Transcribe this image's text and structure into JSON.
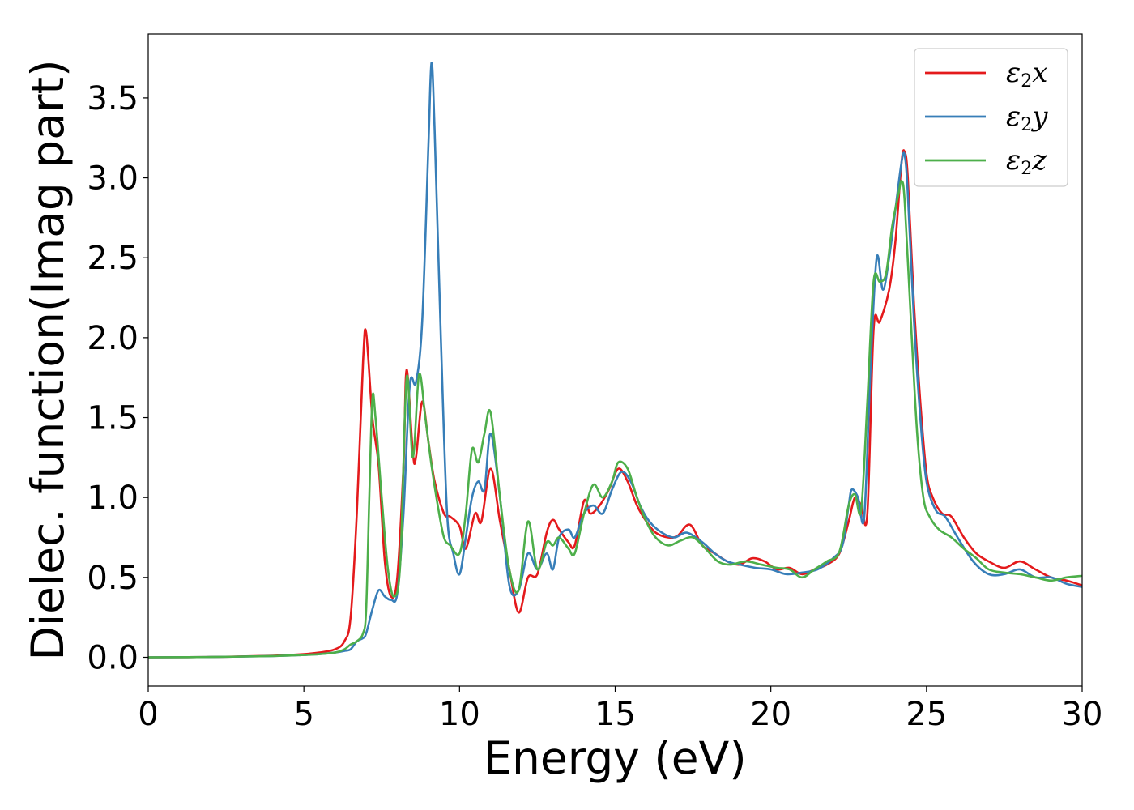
{
  "chart_data": {
    "type": "line",
    "title": "",
    "xlabel": "Energy (eV)",
    "ylabel": "Dielec. function(Imag part)",
    "xlim": [
      0,
      30
    ],
    "ylim": [
      -0.18,
      3.9
    ],
    "xticks": [
      0,
      5,
      10,
      15,
      20,
      25,
      30
    ],
    "xtick_labels": [
      "0",
      "5",
      "10",
      "15",
      "20",
      "25",
      "30"
    ],
    "yticks": [
      0.0,
      0.5,
      1.0,
      1.5,
      2.0,
      2.5,
      3.0,
      3.5
    ],
    "ytick_labels": [
      "0.0",
      "0.5",
      "1.0",
      "1.5",
      "2.0",
      "2.5",
      "3.0",
      "3.5"
    ],
    "grid": false,
    "legend_position": "top-right",
    "series": [
      {
        "name": "ε₂x",
        "legend": {
          "base": "ε",
          "sub": "2",
          "suffix": "x"
        },
        "color": "#e41a1c",
        "x": [
          0,
          2,
          4,
          5,
          5.5,
          6,
          6.3,
          6.5,
          6.7,
          6.9,
          7.0,
          7.2,
          7.4,
          7.6,
          7.8,
          8.0,
          8.2,
          8.3,
          8.5,
          8.6,
          8.8,
          9.0,
          9.2,
          9.5,
          9.7,
          10.0,
          10.2,
          10.5,
          10.7,
          11.0,
          11.3,
          11.6,
          11.9,
          12.2,
          12.5,
          12.8,
          13.0,
          13.2,
          13.5,
          13.7,
          14.0,
          14.2,
          14.5,
          14.8,
          15.1,
          15.4,
          15.7,
          16.0,
          16.3,
          16.7,
          17.0,
          17.4,
          17.8,
          18.2,
          18.6,
          19.0,
          19.4,
          19.8,
          20.2,
          20.6,
          21.0,
          21.4,
          21.8,
          22.2,
          22.5,
          22.7,
          22.9,
          23.1,
          23.3,
          23.5,
          23.8,
          24.0,
          24.2,
          24.3,
          24.4,
          24.6,
          24.8,
          25.0,
          25.2,
          25.5,
          25.8,
          26.2,
          26.6,
          27.0,
          27.5,
          28.0,
          28.5,
          29.0,
          29.5,
          30.0
        ],
        "y": [
          0.0,
          0.002,
          0.01,
          0.02,
          0.03,
          0.05,
          0.1,
          0.25,
          0.9,
          1.85,
          2.03,
          1.5,
          1.2,
          0.6,
          0.38,
          0.5,
          1.2,
          1.8,
          1.28,
          1.25,
          1.6,
          1.35,
          1.1,
          0.9,
          0.88,
          0.82,
          0.68,
          0.9,
          0.85,
          1.18,
          0.85,
          0.55,
          0.28,
          0.5,
          0.52,
          0.78,
          0.86,
          0.8,
          0.72,
          0.7,
          0.98,
          0.9,
          0.95,
          1.05,
          1.18,
          1.1,
          0.95,
          0.85,
          0.78,
          0.75,
          0.76,
          0.83,
          0.7,
          0.65,
          0.6,
          0.58,
          0.62,
          0.6,
          0.55,
          0.56,
          0.52,
          0.55,
          0.58,
          0.65,
          0.85,
          1.0,
          0.95,
          0.9,
          2.05,
          2.1,
          2.3,
          2.6,
          3.1,
          3.16,
          3.0,
          2.2,
          1.6,
          1.15,
          1.0,
          0.9,
          0.88,
          0.75,
          0.65,
          0.6,
          0.56,
          0.6,
          0.55,
          0.5,
          0.48,
          0.45
        ]
      },
      {
        "name": "ε₂y",
        "legend": {
          "base": "ε",
          "sub": "2",
          "suffix": "y"
        },
        "color": "#377eb8",
        "x": [
          0,
          2,
          4,
          5,
          5.5,
          6,
          6.3,
          6.5,
          6.7,
          6.9,
          7.0,
          7.2,
          7.4,
          7.6,
          7.8,
          8.0,
          8.2,
          8.4,
          8.6,
          8.8,
          9.0,
          9.1,
          9.2,
          9.4,
          9.6,
          9.8,
          10.0,
          10.2,
          10.4,
          10.6,
          10.8,
          11.0,
          11.3,
          11.6,
          11.9,
          12.2,
          12.5,
          12.8,
          13.0,
          13.2,
          13.5,
          13.7,
          14.0,
          14.3,
          14.6,
          14.9,
          15.2,
          15.5,
          15.8,
          16.1,
          16.5,
          16.9,
          17.3,
          17.8,
          18.2,
          18.6,
          19.0,
          19.5,
          20.0,
          20.5,
          21.0,
          21.5,
          22.0,
          22.3,
          22.5,
          22.6,
          22.8,
          23.0,
          23.2,
          23.4,
          23.6,
          23.8,
          24.0,
          24.2,
          24.3,
          24.4,
          24.6,
          24.8,
          25.0,
          25.3,
          25.6,
          26.0,
          26.5,
          27.0,
          27.5,
          28.0,
          28.5,
          29.0,
          29.5,
          30.0
        ],
        "y": [
          0.0,
          0.002,
          0.008,
          0.015,
          0.02,
          0.03,
          0.04,
          0.05,
          0.1,
          0.12,
          0.15,
          0.3,
          0.42,
          0.38,
          0.36,
          0.4,
          0.9,
          1.7,
          1.72,
          2.1,
          3.2,
          3.72,
          3.3,
          2.0,
          0.9,
          0.65,
          0.52,
          0.75,
          1.0,
          1.1,
          1.05,
          1.4,
          1.0,
          0.45,
          0.42,
          0.65,
          0.55,
          0.65,
          0.55,
          0.75,
          0.8,
          0.75,
          0.9,
          0.95,
          0.9,
          1.05,
          1.16,
          1.1,
          0.95,
          0.85,
          0.78,
          0.75,
          0.78,
          0.72,
          0.65,
          0.6,
          0.58,
          0.56,
          0.55,
          0.52,
          0.53,
          0.55,
          0.62,
          0.7,
          0.95,
          1.05,
          1.0,
          0.88,
          1.8,
          2.5,
          2.3,
          2.5,
          2.8,
          3.1,
          3.14,
          2.9,
          2.1,
          1.5,
          1.1,
          0.92,
          0.88,
          0.75,
          0.6,
          0.52,
          0.52,
          0.55,
          0.5,
          0.5,
          0.46,
          0.44
        ]
      },
      {
        "name": "ε₂z",
        "legend": {
          "base": "ε",
          "sub": "2",
          "suffix": "z"
        },
        "color": "#4daf4a",
        "x": [
          0,
          2,
          4,
          5,
          5.5,
          6,
          6.3,
          6.5,
          6.7,
          6.9,
          7.0,
          7.1,
          7.2,
          7.3,
          7.5,
          7.7,
          7.9,
          8.1,
          8.3,
          8.5,
          8.7,
          8.9,
          9.1,
          9.3,
          9.5,
          9.7,
          10.0,
          10.2,
          10.4,
          10.6,
          10.8,
          11.0,
          11.3,
          11.6,
          11.9,
          12.2,
          12.5,
          12.8,
          13.0,
          13.2,
          13.5,
          13.7,
          14.0,
          14.3,
          14.6,
          14.9,
          15.1,
          15.4,
          15.7,
          16.0,
          16.3,
          16.7,
          17.1,
          17.5,
          17.9,
          18.3,
          18.7,
          19.2,
          19.7,
          20.2,
          20.6,
          21.0,
          21.4,
          21.8,
          22.2,
          22.5,
          22.7,
          22.9,
          23.1,
          23.3,
          23.5,
          23.7,
          23.9,
          24.1,
          24.2,
          24.3,
          24.5,
          24.7,
          24.9,
          25.1,
          25.4,
          25.8,
          26.2,
          26.6,
          27.0,
          27.5,
          28.0,
          28.5,
          29.0,
          29.5,
          30.0
        ],
        "y": [
          0.0,
          0.002,
          0.008,
          0.015,
          0.02,
          0.03,
          0.05,
          0.08,
          0.1,
          0.15,
          0.3,
          1.0,
          1.62,
          1.5,
          1.0,
          0.55,
          0.38,
          0.6,
          1.75,
          1.25,
          1.77,
          1.5,
          1.2,
          0.95,
          0.75,
          0.7,
          0.65,
          0.9,
          1.3,
          1.22,
          1.4,
          1.53,
          1.0,
          0.55,
          0.42,
          0.85,
          0.55,
          0.72,
          0.7,
          0.75,
          0.68,
          0.65,
          0.9,
          1.08,
          1.0,
          1.1,
          1.22,
          1.18,
          1.0,
          0.85,
          0.75,
          0.7,
          0.73,
          0.75,
          0.68,
          0.6,
          0.58,
          0.6,
          0.58,
          0.56,
          0.55,
          0.5,
          0.55,
          0.6,
          0.66,
          0.95,
          1.02,
          0.92,
          1.6,
          2.35,
          2.35,
          2.4,
          2.7,
          2.9,
          2.98,
          2.85,
          2.1,
          1.4,
          1.0,
          0.88,
          0.8,
          0.75,
          0.68,
          0.62,
          0.55,
          0.53,
          0.52,
          0.5,
          0.48,
          0.5,
          0.51
        ]
      }
    ]
  }
}
